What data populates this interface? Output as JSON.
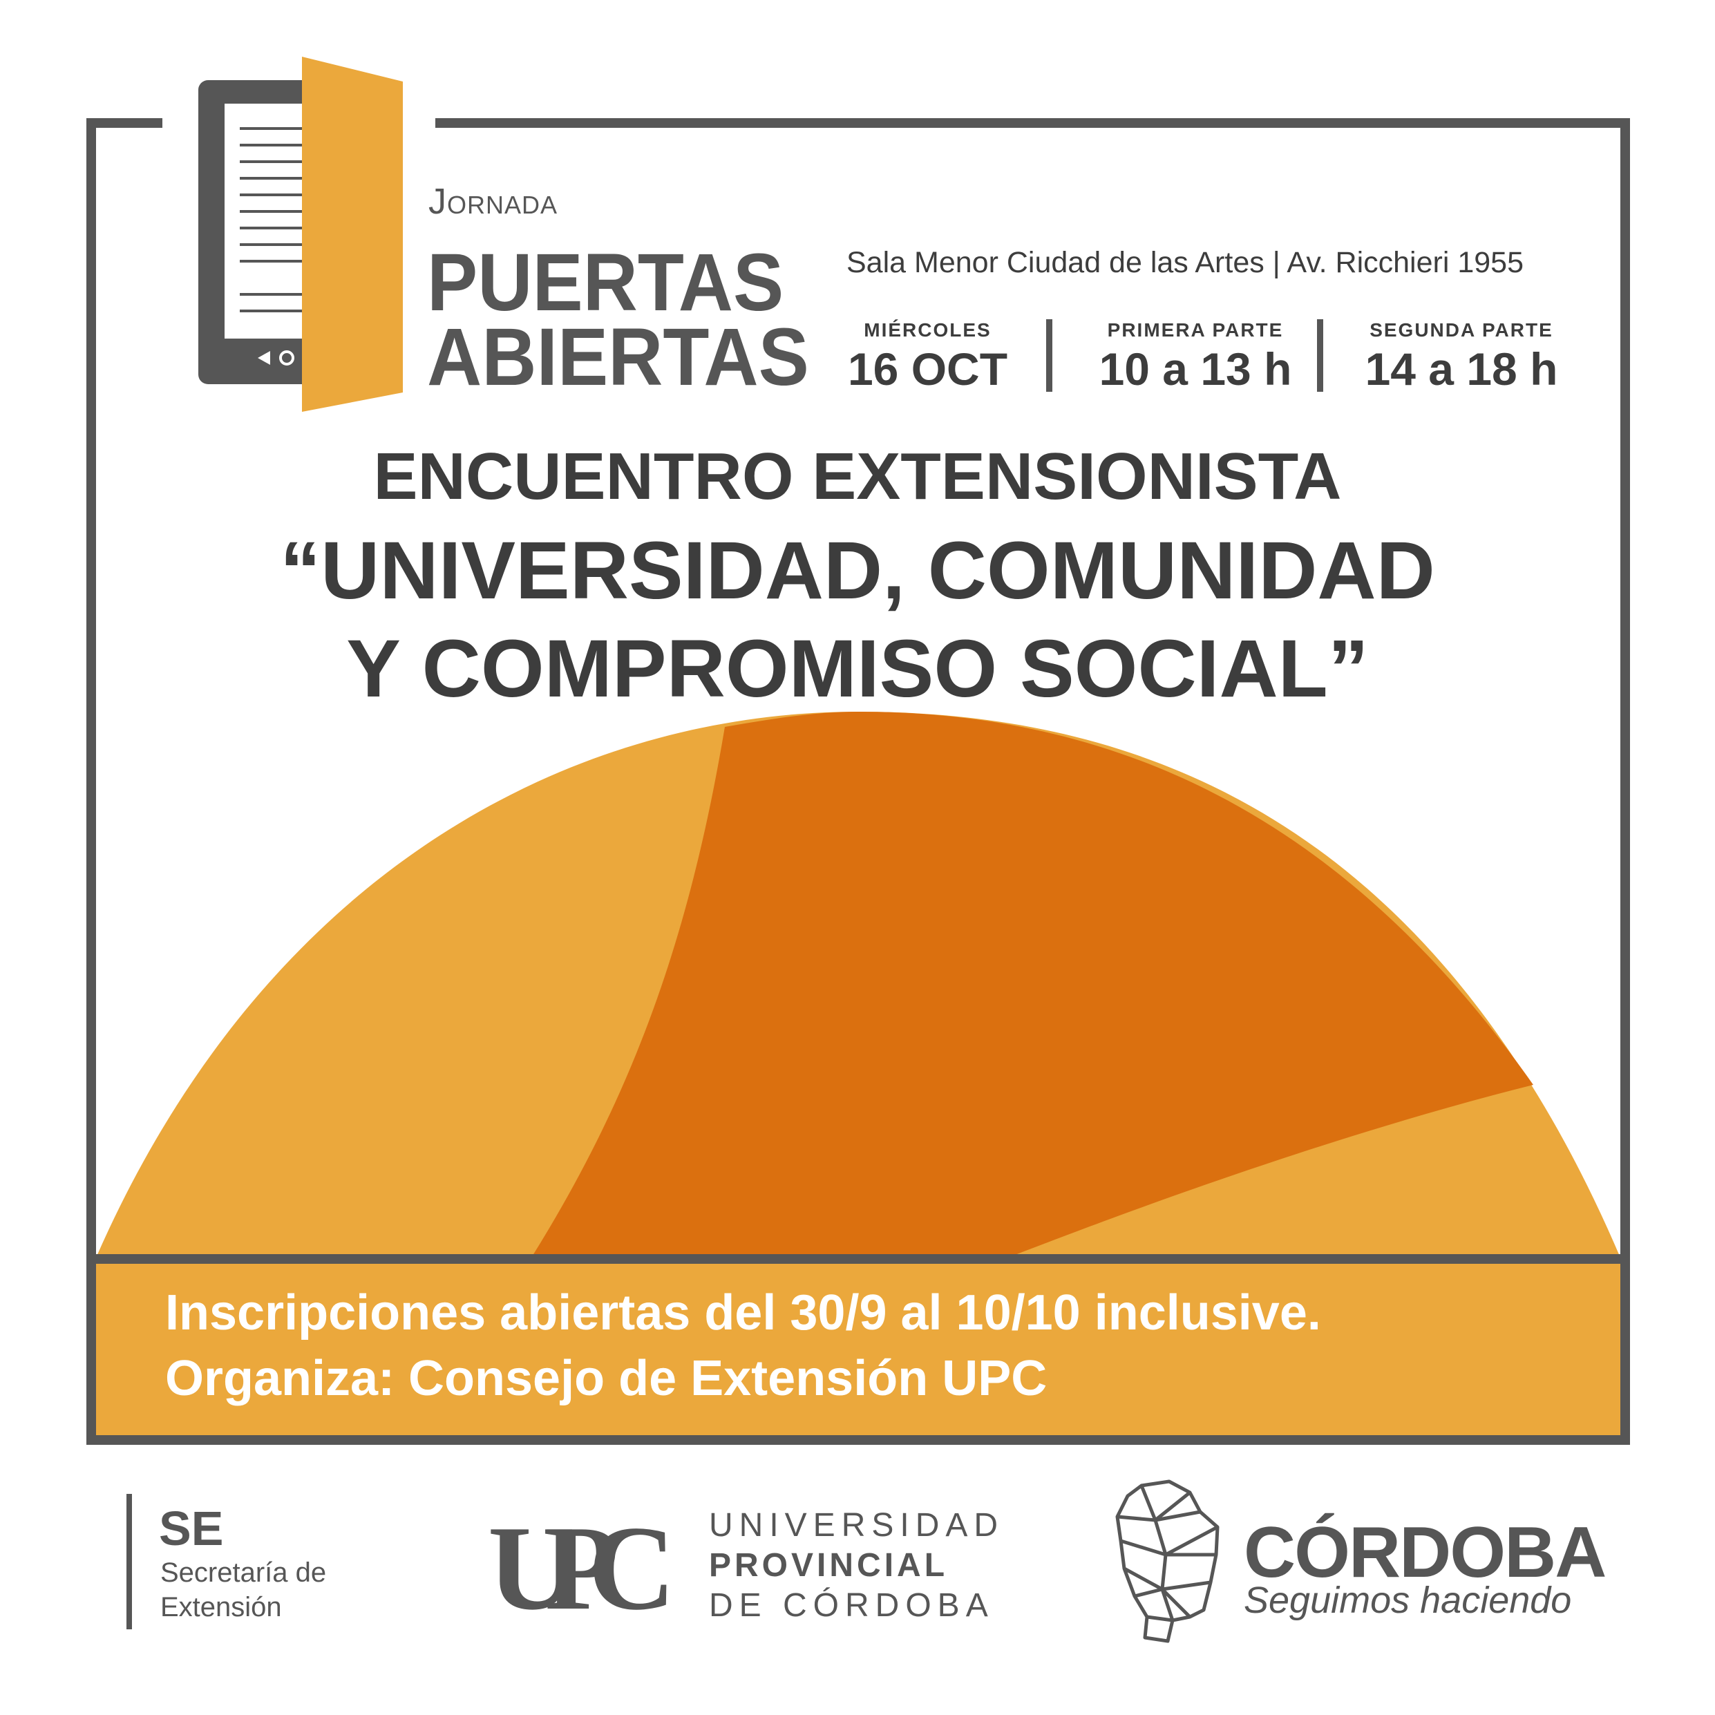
{
  "header": {
    "jornada_label": "Jornada",
    "title_line1": "PUERTAS",
    "title_line2": "ABIERTAS",
    "venue": "Sala Menor Ciudad de las Artes | Av. Ricchieri 1955"
  },
  "schedule": [
    {
      "label": "MIÉRCOLES",
      "value": "16 OCT"
    },
    {
      "label": "PRIMERA PARTE",
      "value": "10 a 13 h"
    },
    {
      "label": "SEGUNDA PARTE",
      "value": "14 a 18 h"
    }
  ],
  "event": {
    "line1": "ENCUENTRO EXTENSIONISTA",
    "line2": "“UNIVERSIDAD, COMUNIDAD",
    "line3": "Y COMPROMISO SOCIAL”"
  },
  "banner": {
    "line1": "Inscripciones abiertas del 30/9 al 10/10 inclusive.",
    "line2": "Organiza: Consejo de Extensión UPC"
  },
  "logos": {
    "se": {
      "abbr": "SE",
      "line1": "Secretaría de",
      "line2": "Extensión"
    },
    "upc": {
      "mark": "UPC",
      "line1": "UNIVERSIDAD",
      "line2": "PROVINCIAL",
      "line3": "DE CÓRDOBA"
    },
    "cordoba": {
      "title": "CÓRDOBA",
      "slogan": "Seguimos haciendo"
    }
  },
  "colors": {
    "gray": "#565656",
    "text": "#3d3d3d",
    "orange_light": "#eba83c",
    "orange_dark": "#db700f",
    "white": "#ffffff"
  },
  "icons": {
    "book": "book-door-icon",
    "map": "cordoba-map-icon"
  }
}
